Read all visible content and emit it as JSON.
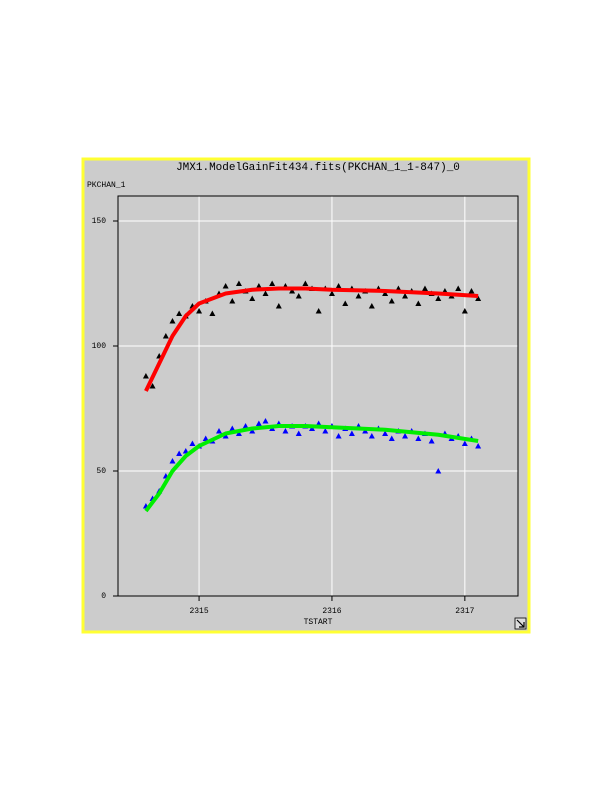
{
  "chart_data": {
    "type": "scatter",
    "title": "JMX1.ModelGainFit434.fits(PKCHAN_1_1-847)_0",
    "y_label": "PKCHAN_1",
    "x_label": "TSTART",
    "xlim": [
      2314.39,
      2317.4
    ],
    "ylim": [
      0,
      160
    ],
    "xticks": [
      2315,
      2316,
      2317
    ],
    "yticks": [
      0,
      50,
      100,
      150
    ],
    "grid": true,
    "x": [
      2314.6,
      2314.65,
      2314.7,
      2314.75,
      2314.8,
      2314.85,
      2314.9,
      2314.95,
      2315.0,
      2315.05,
      2315.1,
      2315.15,
      2315.2,
      2315.25,
      2315.3,
      2315.35,
      2315.4,
      2315.45,
      2315.5,
      2315.55,
      2315.6,
      2315.65,
      2315.7,
      2315.75,
      2315.8,
      2315.85,
      2315.9,
      2315.95,
      2316.0,
      2316.05,
      2316.1,
      2316.15,
      2316.2,
      2316.25,
      2316.3,
      2316.35,
      2316.4,
      2316.45,
      2316.5,
      2316.55,
      2316.6,
      2316.65,
      2316.7,
      2316.75,
      2316.8,
      2316.85,
      2316.9,
      2316.95,
      2317.0,
      2317.05,
      2317.1
    ],
    "series": [
      {
        "color": "#000000",
        "mode": "markers",
        "values": [
          88,
          84,
          96,
          104,
          110,
          113,
          112,
          116,
          114,
          118,
          113,
          121,
          124,
          118,
          125,
          122,
          119,
          124,
          121,
          125,
          116,
          124,
          122,
          120,
          125,
          123,
          114,
          123,
          121,
          124,
          117,
          123,
          120,
          122,
          116,
          123,
          121,
          118,
          123,
          120,
          122,
          117,
          123,
          121,
          119,
          122,
          120,
          123,
          114,
          122,
          119
        ]
      },
      {
        "color": "#0000ff",
        "mode": "markers",
        "values": [
          36,
          39,
          42,
          48,
          54,
          57,
          58,
          61,
          60,
          63,
          62,
          66,
          64,
          67,
          65,
          68,
          66,
          69,
          70,
          67,
          69,
          66,
          68,
          65,
          68,
          67,
          69,
          66,
          68,
          64,
          67,
          65,
          68,
          66,
          64,
          67,
          65,
          63,
          66,
          64,
          66,
          63,
          65,
          62,
          50,
          65,
          63,
          64,
          61,
          63,
          60
        ]
      },
      {
        "color": "#ff0000",
        "mode": "line",
        "x": [
          2314.6,
          2314.7,
          2314.8,
          2314.9,
          2315.0,
          2315.2,
          2315.4,
          2315.6,
          2315.8,
          2316.0,
          2316.4,
          2316.8,
          2317.1
        ],
        "values": [
          82,
          93,
          104,
          112,
          117,
          121,
          122.5,
          123,
          123,
          122.5,
          122,
          121,
          120
        ]
      },
      {
        "color": "#00ee00",
        "mode": "line",
        "x": [
          2314.6,
          2314.7,
          2314.8,
          2314.9,
          2315.0,
          2315.2,
          2315.4,
          2315.6,
          2315.8,
          2316.0,
          2316.4,
          2316.8,
          2317.1
        ],
        "values": [
          34,
          41,
          50,
          56,
          60,
          65,
          67,
          68,
          68,
          67.5,
          66.5,
          64.5,
          62
        ]
      }
    ]
  }
}
